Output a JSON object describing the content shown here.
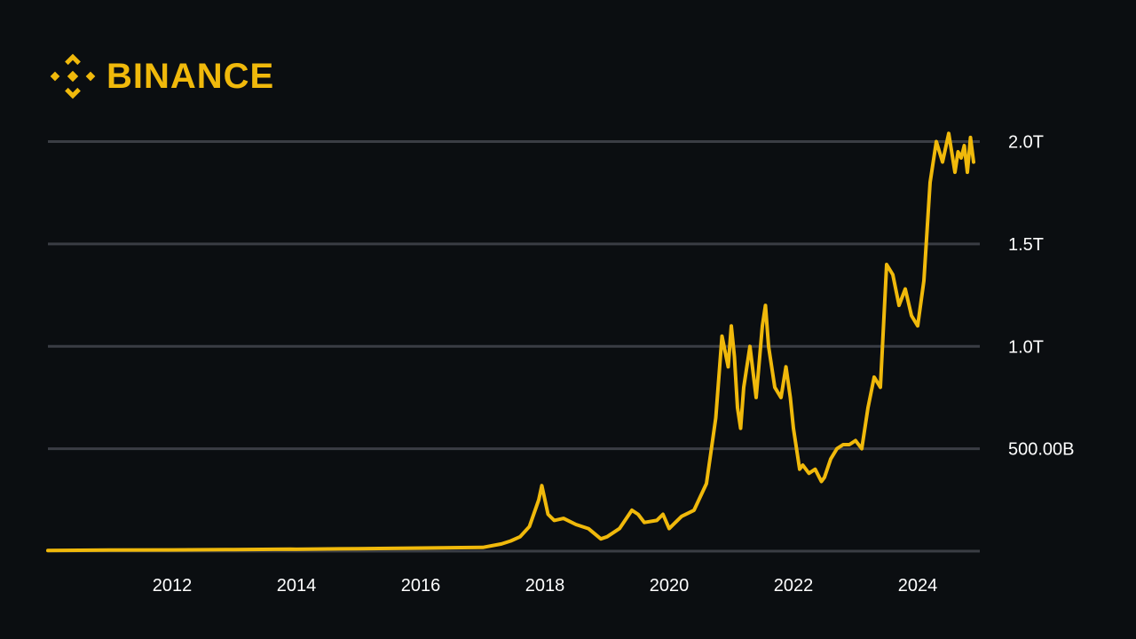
{
  "brand": {
    "name": "BINANCE",
    "color": "#f0b90b",
    "logo_icon": "binance-diamond-icon"
  },
  "colors": {
    "background": "#0b0e11",
    "line": "#f0b90b",
    "grid": "#3a3d44",
    "tick_text": "#ffffff"
  },
  "chart_data": {
    "type": "line",
    "title": "",
    "xlabel": "",
    "ylabel": "",
    "grid": true,
    "legend": "none",
    "xlim": [
      2010.0,
      2025.0
    ],
    "ylim": [
      0,
      2000000000000
    ],
    "x_ticks": [
      {
        "value": 2012,
        "label": "2012"
      },
      {
        "value": 2014,
        "label": "2014"
      },
      {
        "value": 2016,
        "label": "2016"
      },
      {
        "value": 2018,
        "label": "2018"
      },
      {
        "value": 2020,
        "label": "2020"
      },
      {
        "value": 2022,
        "label": "2022"
      },
      {
        "value": 2024,
        "label": "2024"
      }
    ],
    "y_ticks": [
      {
        "value": 500000000000,
        "label": "500.00B"
      },
      {
        "value": 1000000000000,
        "label": "1.0T"
      },
      {
        "value": 1500000000000,
        "label": "1.5T"
      },
      {
        "value": 2000000000000,
        "label": "2.0T"
      }
    ],
    "series": [
      {
        "x": [
          2010.0,
          2011.0,
          2012.0,
          2013.0,
          2013.9,
          2014.0,
          2015.0,
          2016.0,
          2017.0,
          2017.3,
          2017.45,
          2017.6,
          2017.75,
          2017.9,
          2017.95,
          2018.0,
          2018.05,
          2018.15,
          2018.3,
          2018.5,
          2018.7,
          2018.9,
          2019.0,
          2019.2,
          2019.4,
          2019.5,
          2019.6,
          2019.8,
          2019.9,
          2020.0,
          2020.2,
          2020.4,
          2020.6,
          2020.75,
          2020.85,
          2020.95,
          2021.0,
          2021.05,
          2021.1,
          2021.15,
          2021.2,
          2021.3,
          2021.4,
          2021.5,
          2021.55,
          2021.6,
          2021.7,
          2021.8,
          2021.88,
          2021.95,
          2022.0,
          2022.1,
          2022.15,
          2022.25,
          2022.35,
          2022.45,
          2022.5,
          2022.6,
          2022.7,
          2022.8,
          2022.9,
          2023.0,
          2023.1,
          2023.2,
          2023.3,
          2023.4,
          2023.5,
          2023.6,
          2023.7,
          2023.8,
          2023.9,
          2024.0,
          2024.1,
          2024.2,
          2024.3,
          2024.4,
          2024.5,
          2024.6,
          2024.65,
          2024.7,
          2024.75,
          2024.8,
          2024.85,
          2024.9
        ],
        "values": [
          3000000000,
          5000000000,
          6000000000,
          8000000000,
          10000000000,
          9000000000,
          12000000000,
          15000000000,
          18000000000,
          35000000000,
          50000000000,
          70000000000,
          120000000000,
          250000000000,
          320000000000,
          250000000000,
          180000000000,
          150000000000,
          160000000000,
          130000000000,
          110000000000,
          60000000000,
          70000000000,
          110000000000,
          200000000000,
          180000000000,
          140000000000,
          150000000000,
          180000000000,
          110000000000,
          170000000000,
          200000000000,
          330000000000,
          650000000000,
          1050000000000,
          900000000000,
          1100000000000,
          950000000000,
          700000000000,
          600000000000,
          800000000000,
          1000000000000,
          750000000000,
          1100000000000,
          1200000000000,
          1000000000000,
          800000000000,
          750000000000,
          900000000000,
          750000000000,
          600000000000,
          400000000000,
          420000000000,
          380000000000,
          400000000000,
          340000000000,
          360000000000,
          450000000000,
          500000000000,
          520000000000,
          520000000000,
          540000000000,
          500000000000,
          700000000000,
          850000000000,
          800000000000,
          1400000000000,
          1350000000000,
          1200000000000,
          1280000000000,
          1150000000000,
          1100000000000,
          1320000000000,
          1800000000000,
          2000000000000,
          1900000000000,
          2040000000000,
          1850000000000,
          1950000000000,
          1920000000000,
          1980000000000,
          1850000000000,
          2020000000000,
          1900000000000
        ]
      }
    ]
  }
}
